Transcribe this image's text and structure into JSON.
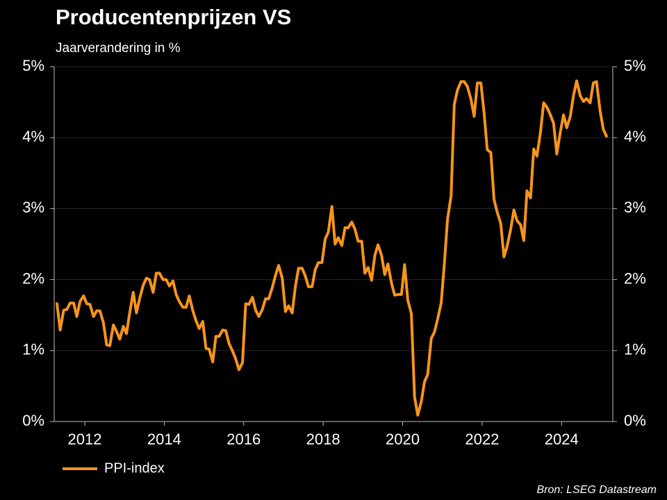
{
  "chart_data": {
    "type": "line",
    "title": "Producentenprijzen VS",
    "subtitle": "Jaarverandering in %",
    "source": "Bron: LSEG Datastream",
    "x": [
      2011.3,
      2011.38,
      2011.47,
      2011.55,
      2011.63,
      2011.72,
      2011.8,
      2011.88,
      2011.97,
      2012.05,
      2012.13,
      2012.22,
      2012.3,
      2012.38,
      2012.47,
      2012.55,
      2012.63,
      2012.72,
      2012.8,
      2012.88,
      2012.97,
      2013.05,
      2013.13,
      2013.22,
      2013.3,
      2013.38,
      2013.47,
      2013.55,
      2013.63,
      2013.72,
      2013.8,
      2013.88,
      2013.97,
      2014.05,
      2014.13,
      2014.22,
      2014.3,
      2014.38,
      2014.47,
      2014.55,
      2014.63,
      2014.72,
      2014.8,
      2014.88,
      2014.97,
      2015.05,
      2015.13,
      2015.22,
      2015.3,
      2015.38,
      2015.47,
      2015.55,
      2015.63,
      2015.72,
      2015.8,
      2015.88,
      2015.97,
      2016.05,
      2016.13,
      2016.22,
      2016.3,
      2016.38,
      2016.47,
      2016.55,
      2016.63,
      2016.72,
      2016.8,
      2016.88,
      2016.97,
      2017.05,
      2017.13,
      2017.22,
      2017.3,
      2017.38,
      2017.47,
      2017.55,
      2017.63,
      2017.72,
      2017.8,
      2017.88,
      2017.97,
      2018.05,
      2018.13,
      2018.22,
      2018.3,
      2018.38,
      2018.47,
      2018.55,
      2018.63,
      2018.72,
      2018.8,
      2018.88,
      2018.97,
      2019.05,
      2019.13,
      2019.22,
      2019.3,
      2019.38,
      2019.47,
      2019.55,
      2019.63,
      2019.72,
      2019.8,
      2019.88,
      2019.97,
      2020.05,
      2020.13,
      2020.22,
      2020.3,
      2020.38,
      2020.47,
      2020.55,
      2020.63,
      2020.72,
      2020.8,
      2020.88,
      2020.97,
      2021.05,
      2021.13,
      2021.22,
      2021.3,
      2021.38,
      2021.47,
      2021.55,
      2021.63,
      2021.72,
      2021.8,
      2021.88,
      2021.97,
      2022.05,
      2022.13,
      2022.22,
      2022.3,
      2022.38,
      2022.47,
      2022.55,
      2022.63,
      2022.72,
      2022.8,
      2022.88,
      2022.97,
      2023.05,
      2023.13,
      2023.22,
      2023.3,
      2023.38,
      2023.47,
      2023.55,
      2023.63,
      2023.72,
      2023.8,
      2023.88,
      2023.97,
      2024.05,
      2024.13,
      2024.22,
      2024.3,
      2024.38,
      2024.47,
      2024.55,
      2024.63,
      2024.72,
      2024.8,
      2024.88,
      2024.97,
      2025.05,
      2025.13
    ],
    "series": [
      {
        "name": "PPI-index",
        "color": "#f7941d",
        "values": [
          1.66,
          1.29,
          1.57,
          1.58,
          1.67,
          1.67,
          1.48,
          1.69,
          1.77,
          1.66,
          1.65,
          1.48,
          1.56,
          1.56,
          1.39,
          1.08,
          1.07,
          1.36,
          1.27,
          1.16,
          1.34,
          1.24,
          1.53,
          1.82,
          1.53,
          1.73,
          1.92,
          2.02,
          2.0,
          1.82,
          2.09,
          2.09,
          2.0,
          2.0,
          1.91,
          1.98,
          1.79,
          1.69,
          1.61,
          1.61,
          1.77,
          1.56,
          1.42,
          1.31,
          1.41,
          1.03,
          1.02,
          0.84,
          1.2,
          1.2,
          1.29,
          1.28,
          1.1,
          0.99,
          0.88,
          0.73,
          0.83,
          1.66,
          1.65,
          1.75,
          1.57,
          1.48,
          1.58,
          1.73,
          1.73,
          1.89,
          2.06,
          2.2,
          2.02,
          1.55,
          1.63,
          1.53,
          1.9,
          2.16,
          2.16,
          2.05,
          1.9,
          1.9,
          2.14,
          2.24,
          2.24,
          2.57,
          2.67,
          3.03,
          2.5,
          2.59,
          2.48,
          2.73,
          2.73,
          2.81,
          2.71,
          2.54,
          2.54,
          2.09,
          2.17,
          1.99,
          2.34,
          2.49,
          2.34,
          2.07,
          2.22,
          1.95,
          1.78,
          1.79,
          1.79,
          2.21,
          1.71,
          1.52,
          0.35,
          0.09,
          0.28,
          0.56,
          0.66,
          1.17,
          1.26,
          1.44,
          1.67,
          2.22,
          2.85,
          3.18,
          4.47,
          4.67,
          4.79,
          4.79,
          4.72,
          4.54,
          4.3,
          4.77,
          4.77,
          4.35,
          3.83,
          3.79,
          3.13,
          2.95,
          2.79,
          2.32,
          2.47,
          2.71,
          2.98,
          2.83,
          2.77,
          2.55,
          3.25,
          3.15,
          3.84,
          3.74,
          4.08,
          4.49,
          4.43,
          4.32,
          4.2,
          3.77,
          4.08,
          4.32,
          4.14,
          4.3,
          4.59,
          4.8,
          4.59,
          4.51,
          4.55,
          4.49,
          4.77,
          4.79,
          4.38,
          4.12,
          4.02
        ]
      }
    ],
    "xlim": [
      2011.23,
      2025.29
    ],
    "xticks": [
      2012,
      2014,
      2016,
      2018,
      2020,
      2022,
      2024
    ],
    "ylim": [
      0,
      5
    ],
    "yticks": [
      {
        "value": 0,
        "label": "0%"
      },
      {
        "value": 1,
        "label": "1%"
      },
      {
        "value": 2,
        "label": "2%"
      },
      {
        "value": 3,
        "label": "3%"
      },
      {
        "value": 4,
        "label": "4%"
      },
      {
        "value": 5,
        "label": "5%"
      }
    ],
    "y2lim": [
      0,
      5
    ],
    "y2ticks": [
      {
        "value": 0,
        "label": "0%"
      },
      {
        "value": 1,
        "label": "1%"
      },
      {
        "value": 2,
        "label": "2%"
      },
      {
        "value": 3,
        "label": "3%"
      },
      {
        "value": 4,
        "label": "4%"
      },
      {
        "value": 5,
        "label": "5%"
      }
    ],
    "grid": true,
    "legend": "bottom-left"
  }
}
